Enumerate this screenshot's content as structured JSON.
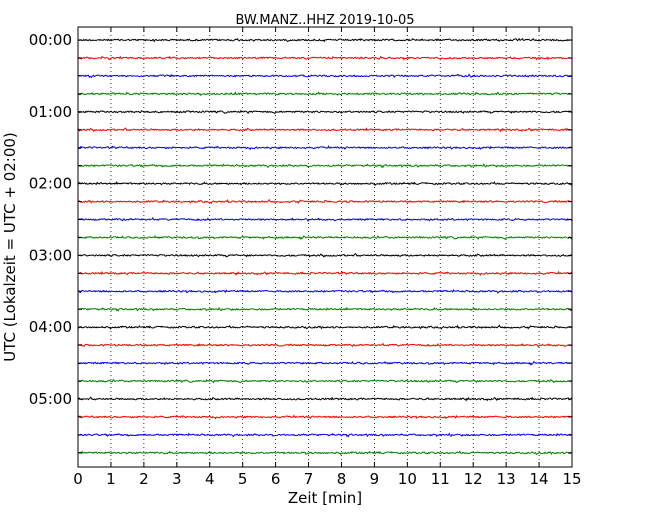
{
  "chart_data": {
    "type": "line",
    "title": "BW.MANZ..HHZ 2019-10-05",
    "xlabel": "Zeit  [min]",
    "ylabel": "UTC (Lokalzeit = UTC + 02:00)",
    "xlim": [
      0,
      15
    ],
    "x_ticks": [
      "0",
      "1",
      "2",
      "3",
      "4",
      "5",
      "6",
      "7",
      "8",
      "9",
      "10",
      "11",
      "12",
      "13",
      "14",
      "15"
    ],
    "y_ticks": [
      "00:00",
      "01:00",
      "02:00",
      "03:00",
      "04:00",
      "05:00"
    ],
    "trace_interval_min": 15,
    "trace_count": 24,
    "trace_colors": [
      "#000000",
      "#ff0000",
      "#0000ff",
      "#007f00"
    ],
    "grid": "vertical dotted lines at each minute"
  }
}
